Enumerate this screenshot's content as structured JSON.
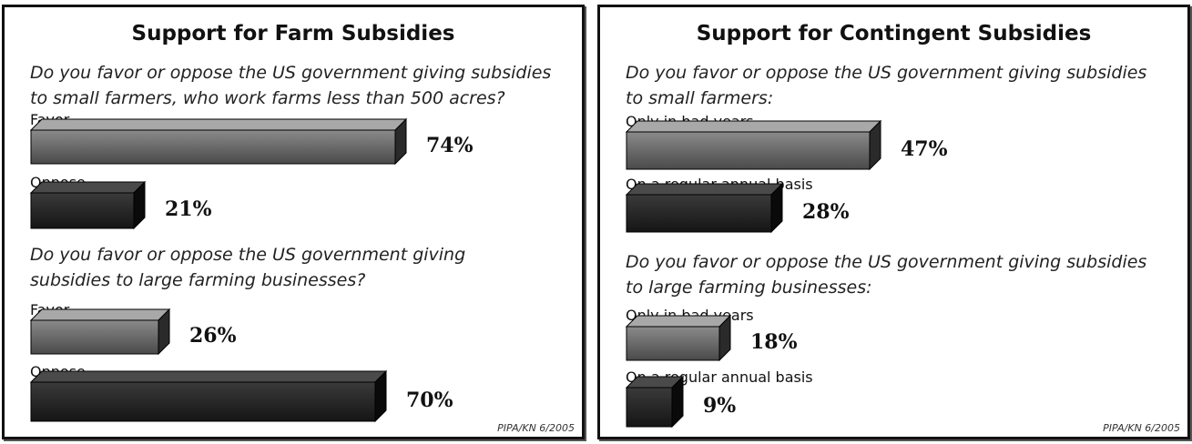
{
  "chart_data": [
    {
      "type": "bar",
      "title": "Support for Farm Subsidies",
      "source": "PIPA/KN 6/2005",
      "groups": [
        {
          "question": [
            "Do you favor or oppose the US government giving subsidies",
            "to small farmers, who work farms less than 500 acres?"
          ],
          "bars": [
            {
              "label": "Favor",
              "value": 74,
              "display": "74%",
              "style": "light"
            },
            {
              "label": "Oppose",
              "value": 21,
              "display": "21%",
              "style": "dark"
            }
          ]
        },
        {
          "question": [
            "Do you favor or oppose the US government giving",
            "subsidies to large farming businesses?"
          ],
          "bars": [
            {
              "label": "Favor",
              "value": 26,
              "display": "26%",
              "style": "light"
            },
            {
              "label": "Oppose",
              "value": 70,
              "display": "70%",
              "style": "dark"
            }
          ]
        }
      ]
    },
    {
      "type": "bar",
      "title": "Support for Contingent Subsidies",
      "source": "PIPA/KN 6/2005",
      "groups": [
        {
          "question": [
            "Do you favor or oppose the US government giving subsidies",
            "to small farmers:"
          ],
          "bars": [
            {
              "label": "Only in bad years",
              "value": 47,
              "display": "47%",
              "style": "light"
            },
            {
              "label": "On a regular annual basis",
              "value": 28,
              "display": "28%",
              "style": "dark"
            }
          ]
        },
        {
          "question": [
            "Do you favor or oppose the US government giving subsidies",
            "to large farming businesses:"
          ],
          "bars": [
            {
              "label": "Only in bad years",
              "value": 18,
              "display": "18%",
              "style": "light"
            },
            {
              "label": "On a regular annual basis",
              "value": 9,
              "display": "9%",
              "style": "dark"
            }
          ]
        }
      ]
    }
  ],
  "colors": {
    "light_front_top": "#8a8a8a",
    "light_front_bottom": "#4a4a4a",
    "light_top": "#a8a8a8",
    "light_side": "#2a2a2a",
    "dark_front_top": "#3a3a3a",
    "dark_front_bottom": "#151515",
    "dark_top": "#4a4a4a",
    "dark_side": "#0a0a0a"
  }
}
